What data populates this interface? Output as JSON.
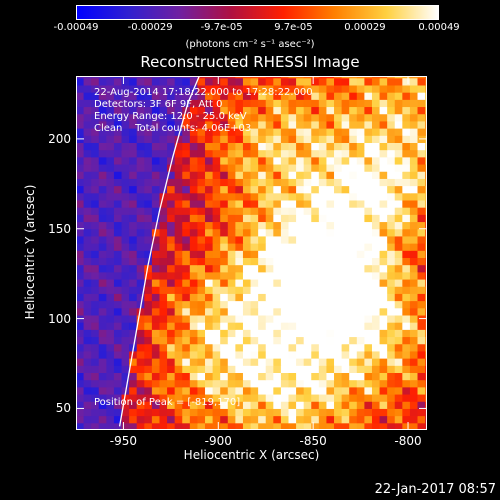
{
  "colorbar": {
    "ticks": [
      "-0.00049",
      "-0.00029",
      "-9.7e-05",
      "9.7e-05",
      "0.00029",
      "0.00049"
    ],
    "tick_values": [
      -0.00049,
      -0.00029,
      -9.7e-05,
      9.7e-05,
      0.00029,
      0.00049
    ],
    "range": [
      -0.00049,
      0.00049
    ],
    "units": "(photons cm⁻² s⁻¹ asec⁻²)",
    "colormap": [
      "#0000ff",
      "#3020d0",
      "#7020a0",
      "#b01040",
      "#ff2000",
      "#ff8000",
      "#ffd040",
      "#ffffff"
    ]
  },
  "annotations": {
    "line1": "22-Aug-2014 17:18:22.000 to 17:28:22.000",
    "line2": "Detectors: 3F 6F 9F, Att 0",
    "line3": "Energy Range: 12.0 - 25.0 keV",
    "line4": "Clean    Total counts: 4.06E+03",
    "peak": "Position of Peak = [-819,170]"
  },
  "timestamp": "22-Jan-2017 08:57",
  "chart_data": {
    "type": "heatmap",
    "title": "Reconstructed RHESSI Image",
    "xlabel": "Heliocentric X (arcsec)",
    "ylabel": "Heliocentric Y (arcsec)",
    "xlim": [
      -975,
      -790
    ],
    "ylim": [
      38,
      235
    ],
    "xticks": [
      -950,
      -900,
      -850,
      -800
    ],
    "yticks": [
      50,
      100,
      150,
      200
    ],
    "peak": [
      -819,
      170
    ],
    "limb_curve": [
      [
        -952,
        40
      ],
      [
        -947,
        70
      ],
      [
        -942,
        100
      ],
      [
        -937,
        130
      ],
      [
        -931,
        160
      ],
      [
        -924,
        190
      ],
      [
        -916,
        220
      ],
      [
        -910,
        235
      ]
    ],
    "pixel_size": 4,
    "hotspots": [
      {
        "x": -850,
        "y": 138,
        "s": 22,
        "a": 0.95
      },
      {
        "x": -838,
        "y": 118,
        "s": 18,
        "a": 0.85
      },
      {
        "x": -818,
        "y": 170,
        "s": 20,
        "a": 0.85
      },
      {
        "x": -870,
        "y": 195,
        "s": 25,
        "a": 0.65
      },
      {
        "x": -820,
        "y": 95,
        "s": 25,
        "a": 0.75
      },
      {
        "x": -905,
        "y": 80,
        "s": 28,
        "a": 0.55
      },
      {
        "x": -860,
        "y": 60,
        "s": 25,
        "a": 0.7
      },
      {
        "x": -800,
        "y": 215,
        "s": 30,
        "a": 0.6
      },
      {
        "x": -880,
        "y": 110,
        "s": 25,
        "a": 0.55
      }
    ]
  }
}
